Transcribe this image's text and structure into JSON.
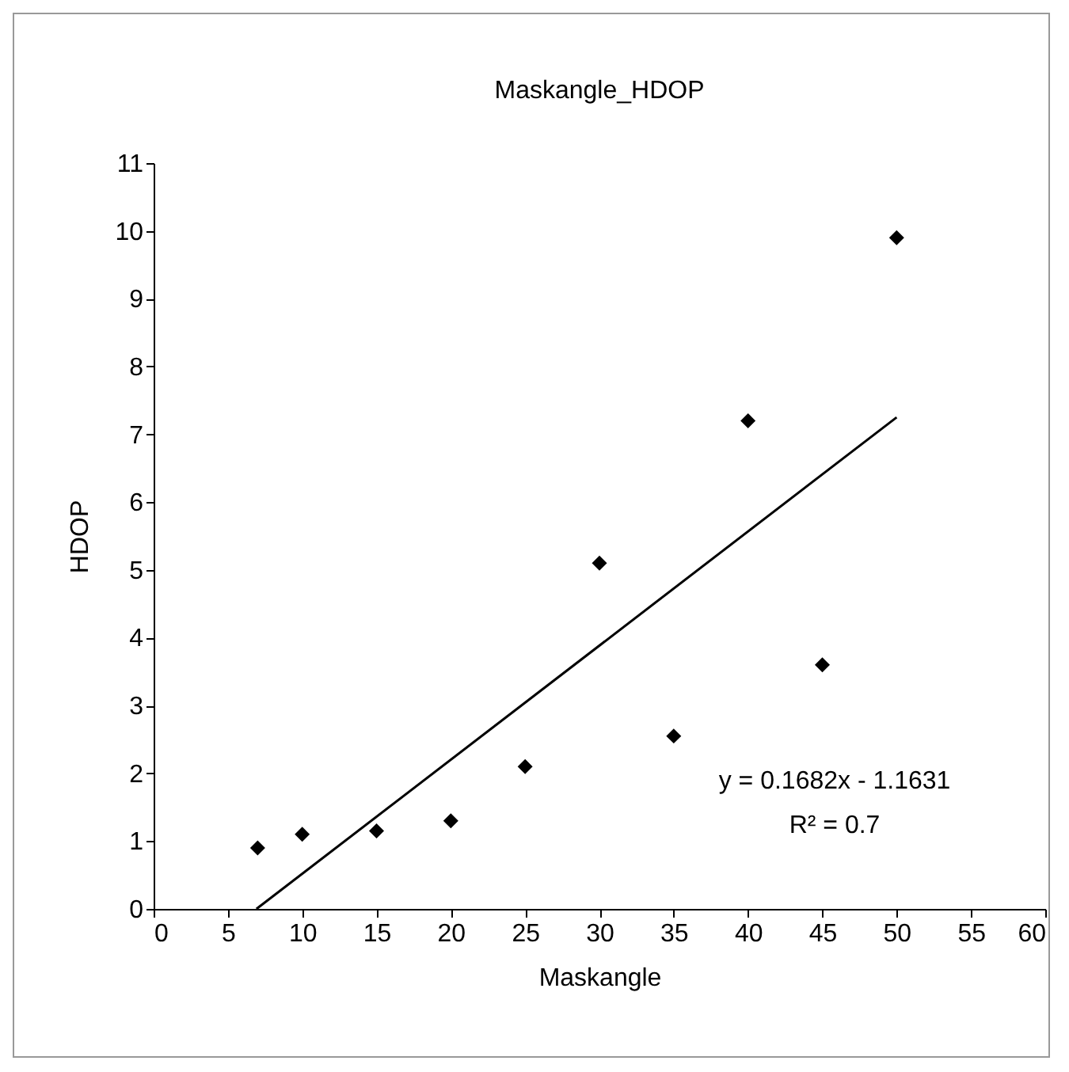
{
  "chart_data": {
    "type": "scatter",
    "title": "Maskangle_HDOP",
    "xlabel": "Maskangle",
    "ylabel": "HDOP",
    "x": [
      7,
      10,
      15,
      20,
      25,
      30,
      35,
      40,
      45,
      50
    ],
    "series": [
      {
        "color": "#000000",
        "values": [
          0.9,
          1.1,
          1.15,
          1.3,
          2.1,
          5.1,
          2.55,
          7.2,
          3.6,
          9.9
        ]
      },
      {
        "type": "line",
        "color": "#000000",
        "x": [
          6.92,
          50
        ],
        "values": [
          0,
          7.25
        ],
        "line_style": "solid",
        "marker": "none"
      }
    ],
    "xlim": [
      0,
      60
    ],
    "xticks": [
      0,
      5,
      10,
      15,
      20,
      25,
      30,
      35,
      40,
      45,
      50,
      55,
      60
    ],
    "ylim": [
      0,
      11
    ],
    "yticks": [
      0,
      1,
      2,
      3,
      4,
      5,
      6,
      7,
      8,
      9,
      10,
      11
    ],
    "grid": false,
    "marker": "diamond",
    "annotations": [
      "y = 0.1682x - 1.1631",
      "R² = 0.7"
    ]
  }
}
